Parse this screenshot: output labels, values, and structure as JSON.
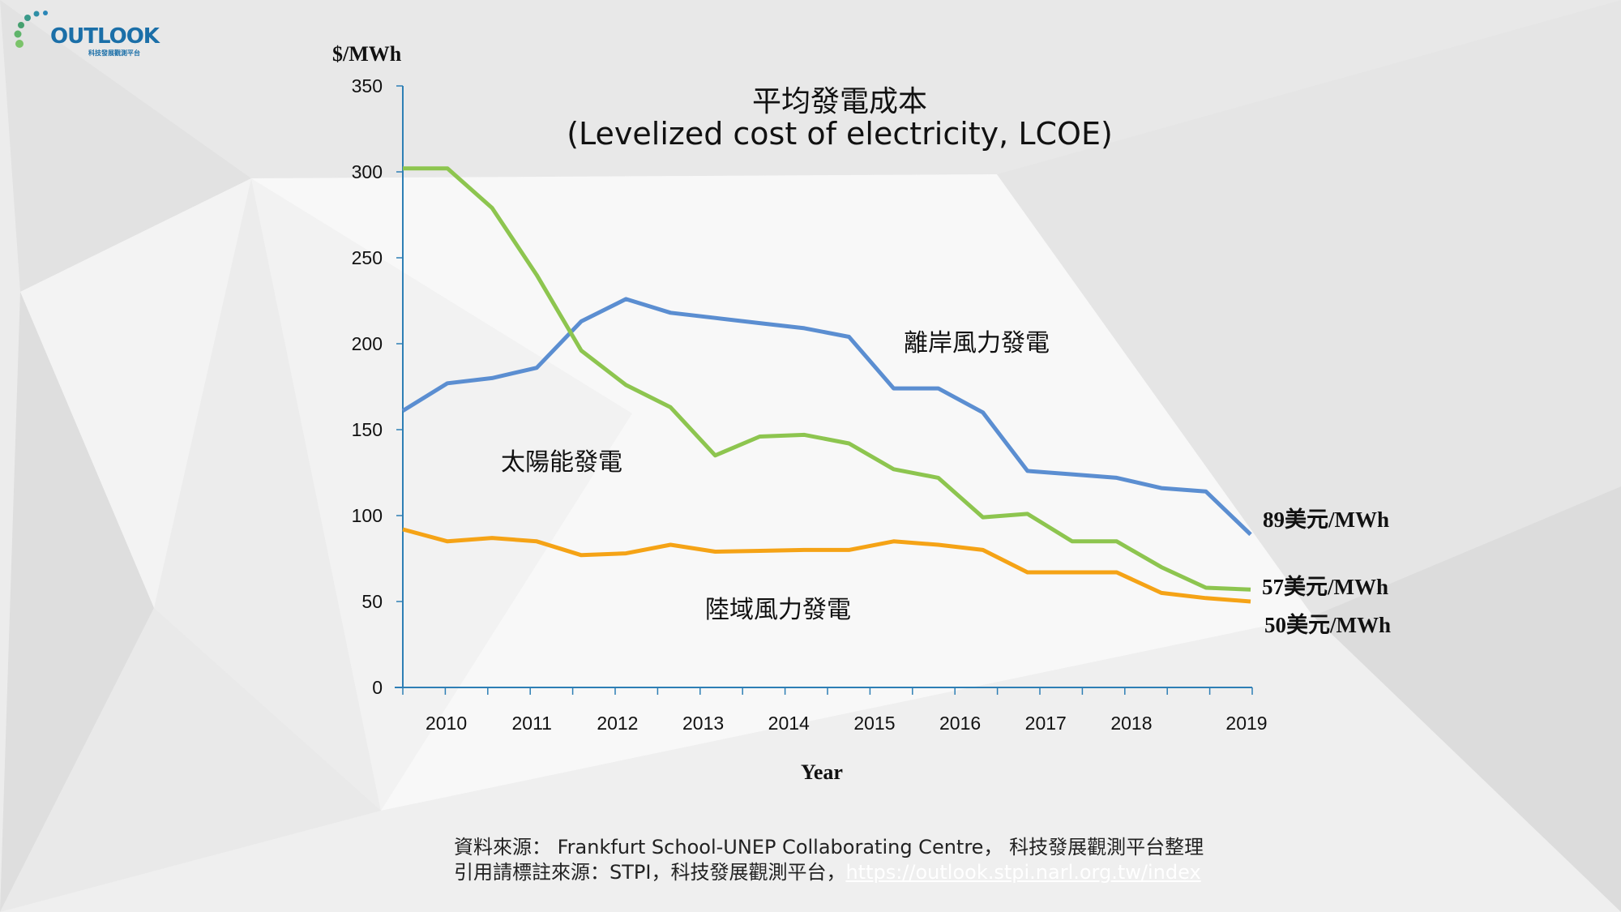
{
  "logo": {
    "name": "OUTLOOK",
    "subtitle": "科技發展觀測平台"
  },
  "colors": {
    "solar": "#8dc54f",
    "offshore_wind": "#5b8ed1",
    "onshore_wind": "#f5a316",
    "axis": "#2e7fb5"
  },
  "chart_data": {
    "type": "line",
    "title": "平均發電成本",
    "subtitle": "(Levelized cost of electricity, LCOE)",
    "xlabel": "Year",
    "ylabel": "$/MWh",
    "ylim": [
      0,
      350
    ],
    "yticks": [
      "0",
      "50",
      "100",
      "150",
      "200",
      "250",
      "300",
      "350"
    ],
    "ytick_values": [
      0,
      50,
      100,
      150,
      200,
      250,
      300,
      350
    ],
    "xtick_labels": [
      "2010",
      "2011",
      "2012",
      "2013",
      "2014",
      "2015",
      "2016",
      "2017",
      "2018",
      "2019"
    ],
    "x": [
      "2010H1",
      "2010H2",
      "2011H1",
      "2011H2",
      "2012H1",
      "2012H2",
      "2013H1",
      "2013H2",
      "2014H1",
      "2014H2",
      "2015H1",
      "2015H2",
      "2016H1",
      "2016H2",
      "2017H1",
      "2017H2",
      "2018H1",
      "2018H2",
      "2019H1",
      "2019H2"
    ],
    "grid": false,
    "series": [
      {
        "name": "離岸風力發電",
        "key": "offshore_wind",
        "end_label": "89美元/MWh",
        "values": [
          161,
          177,
          180,
          186,
          213,
          226,
          218,
          215,
          212,
          209,
          204,
          174,
          174,
          160,
          126,
          124,
          122,
          116,
          114,
          89
        ]
      },
      {
        "name": "太陽能發電",
        "key": "solar",
        "end_label": "57美元/MWh",
        "values": [
          302,
          302,
          279,
          240,
          196,
          176,
          163,
          135,
          146,
          147,
          142,
          127,
          122,
          99,
          101,
          85,
          85,
          70,
          58,
          57
        ]
      },
      {
        "name": "陸域風力發電",
        "key": "onshore_wind",
        "end_label": "50美元/MWh",
        "values": [
          92,
          85,
          87,
          85,
          77,
          78,
          83,
          79,
          79.5,
          80,
          80,
          85,
          83,
          80,
          67,
          67,
          67,
          55,
          52,
          50
        ]
      }
    ]
  },
  "source": {
    "line1": "資料來源： Frankfurt School-UNEP Collaborating Centre， 科技發展觀測平台整理",
    "line2_prefix": "引用請標註來源：STPI，科技發展觀測平台，",
    "link": "https://outlook.stpi.narl.org.tw/index"
  }
}
